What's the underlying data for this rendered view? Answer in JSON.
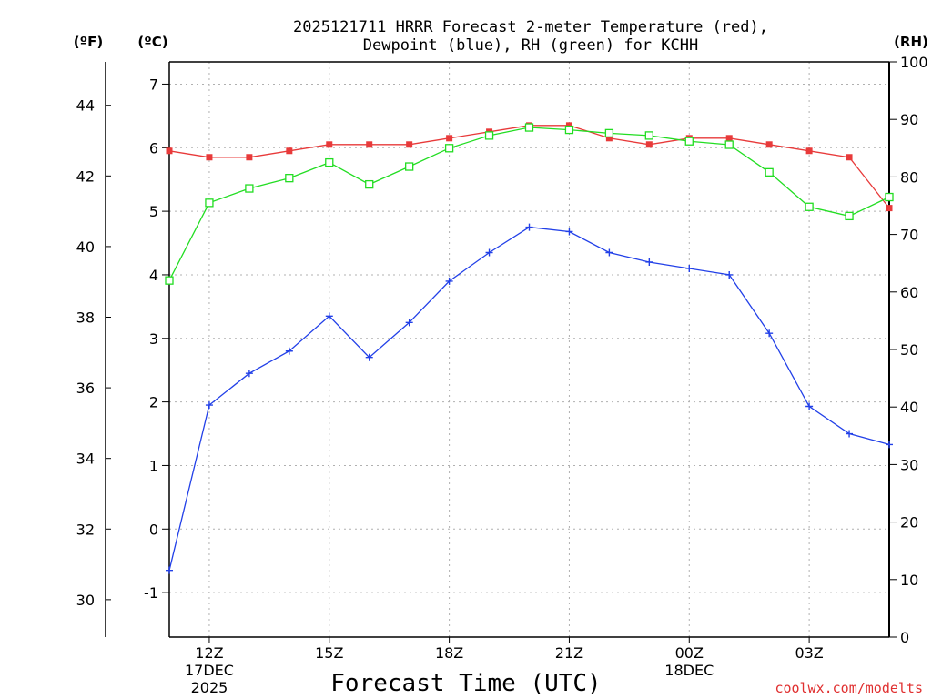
{
  "chart_data": {
    "type": "line",
    "title_lines": [
      "2025121711 HRRR Forecast 2-meter Temperature (red),",
      "Dewpoint (blue), RH (green) for KCHH"
    ],
    "xlabel": "Forecast Time (UTC)",
    "unit_labels": {
      "fahrenheit": "(ºF)",
      "celsius": "(ºC)",
      "rh": "(RH)"
    },
    "hours_from_11Z": [
      0,
      1,
      2,
      3,
      4,
      5,
      6,
      7,
      8,
      9,
      10,
      11,
      12,
      13,
      14,
      15,
      16,
      17,
      18
    ],
    "x_range": [
      0,
      18
    ],
    "x_ticks": [
      {
        "hour": 1,
        "lines": [
          "12Z",
          "17DEC",
          "2025"
        ]
      },
      {
        "hour": 4,
        "lines": [
          "15Z"
        ]
      },
      {
        "hour": 7,
        "lines": [
          "18Z"
        ]
      },
      {
        "hour": 10,
        "lines": [
          "21Z"
        ]
      },
      {
        "hour": 13,
        "lines": [
          "00Z",
          "18DEC"
        ]
      },
      {
        "hour": 16,
        "lines": [
          "03Z"
        ]
      }
    ],
    "celsius_range": [
      -1.7,
      7.35
    ],
    "celsius_ticks": [
      "-1",
      "0",
      "1",
      "2",
      "3",
      "4",
      "5",
      "6",
      "7"
    ],
    "fahrenheit_ticks": [
      "30",
      "32",
      "34",
      "36",
      "38",
      "40",
      "42",
      "44"
    ],
    "rh_range": [
      0,
      100
    ],
    "rh_ticks": [
      "0",
      "10",
      "20",
      "30",
      "40",
      "50",
      "60",
      "70",
      "80",
      "90",
      "100"
    ],
    "grid": true,
    "series": [
      {
        "name": "Temperature",
        "unit": "C",
        "color": "#e83a3a",
        "marker": "filled-square",
        "values": [
          5.95,
          5.85,
          5.85,
          5.95,
          6.05,
          6.05,
          6.05,
          6.15,
          6.25,
          6.35,
          6.35,
          6.15,
          6.05,
          6.15,
          6.15,
          6.05,
          5.95,
          5.85,
          5.05
        ]
      },
      {
        "name": "Dewpoint",
        "unit": "C",
        "color": "#2240e8",
        "marker": "plus",
        "values": [
          -0.65,
          1.95,
          2.45,
          2.8,
          3.35,
          2.7,
          3.25,
          3.9,
          4.35,
          4.75,
          4.68,
          4.35,
          4.2,
          4.1,
          4.0,
          3.08,
          1.93,
          1.5,
          1.33
        ]
      },
      {
        "name": "RH",
        "unit": "%",
        "color": "#22dd22",
        "marker": "open-square",
        "values": [
          62,
          75.5,
          78,
          79.8,
          82.5,
          78.7,
          81.8,
          85,
          87.2,
          88.6,
          88.2,
          87.6,
          87.2,
          86.2,
          85.6,
          80.8,
          74.8,
          73.2,
          76.5
        ]
      }
    ],
    "credit": "coolwx.com/modelts"
  }
}
